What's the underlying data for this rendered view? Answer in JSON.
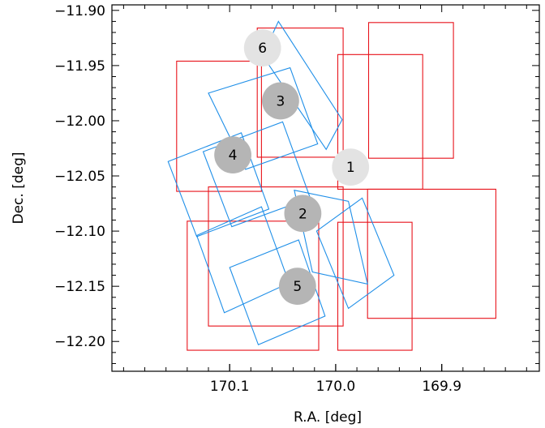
{
  "chart_data": {
    "type": "scatter",
    "xlabel": "R.A. [deg]",
    "ylabel": "Dec. [deg]",
    "xlim": [
      170.211,
      169.808
    ],
    "ylim": [
      -12.227,
      -11.895
    ],
    "x_ticks": [
      {
        "value": 170.1,
        "label": "170.1"
      },
      {
        "value": 170.0,
        "label": "170.0"
      },
      {
        "value": 169.9,
        "label": "169.9"
      }
    ],
    "y_ticks": [
      {
        "value": -11.9,
        "label": "−11.90"
      },
      {
        "value": -11.95,
        "label": "−11.95"
      },
      {
        "value": -12.0,
        "label": "−12.00"
      },
      {
        "value": -12.05,
        "label": "−12.05"
      },
      {
        "value": -12.1,
        "label": "−12.10"
      },
      {
        "value": -12.15,
        "label": "−12.15"
      },
      {
        "value": -12.2,
        "label": "−12.20"
      }
    ],
    "grid": false,
    "colors": {
      "red_fields": "#e8141c",
      "blue_fields": "#1f8fe8",
      "dark_circle": "#b5b5b5",
      "light_circle": "#e3e3e3"
    },
    "circles": [
      {
        "label": "1",
        "ra": 169.986,
        "dec": -12.042,
        "r_deg": 0.0175,
        "shade": "light"
      },
      {
        "label": "2",
        "ra": 170.031,
        "dec": -12.084,
        "r_deg": 0.0175,
        "shade": "dark"
      },
      {
        "label": "3",
        "ra": 170.052,
        "dec": -11.982,
        "r_deg": 0.0175,
        "shade": "dark"
      },
      {
        "label": "4",
        "ra": 170.097,
        "dec": -12.031,
        "r_deg": 0.0175,
        "shade": "dark"
      },
      {
        "label": "5",
        "ra": 170.036,
        "dec": -12.15,
        "r_deg": 0.0175,
        "shade": "dark"
      },
      {
        "label": "6",
        "ra": 170.069,
        "dec": -11.934,
        "r_deg": 0.0175,
        "shade": "light"
      }
    ],
    "red_fields": [
      [
        [
          170.074,
          -11.916
        ],
        [
          169.993,
          -11.916
        ],
        [
          169.993,
          -12.033
        ],
        [
          170.074,
          -12.033
        ]
      ],
      [
        [
          170.15,
          -11.946
        ],
        [
          170.07,
          -11.946
        ],
        [
          170.07,
          -12.064
        ],
        [
          170.15,
          -12.064
        ]
      ],
      [
        [
          169.998,
          -11.94
        ],
        [
          169.918,
          -11.94
        ],
        [
          169.918,
          -12.062
        ],
        [
          169.998,
          -12.062
        ]
      ],
      [
        [
          169.969,
          -11.911
        ],
        [
          169.889,
          -11.911
        ],
        [
          169.889,
          -12.034
        ],
        [
          169.969,
          -12.034
        ]
      ],
      [
        [
          170.12,
          -12.06
        ],
        [
          169.993,
          -12.06
        ],
        [
          169.993,
          -12.186
        ],
        [
          170.12,
          -12.186
        ]
      ],
      [
        [
          170.14,
          -12.091
        ],
        [
          170.016,
          -12.091
        ],
        [
          170.016,
          -12.208
        ],
        [
          170.14,
          -12.208
        ]
      ],
      [
        [
          169.998,
          -12.092
        ],
        [
          169.928,
          -12.092
        ],
        [
          169.928,
          -12.208
        ],
        [
          169.998,
          -12.208
        ]
      ],
      [
        [
          169.97,
          -12.062
        ],
        [
          169.849,
          -12.062
        ],
        [
          169.849,
          -12.179
        ],
        [
          169.97,
          -12.179
        ]
      ]
    ],
    "blue_fields": [
      [
        [
          170.069,
          -11.941
        ],
        [
          170.054,
          -11.91
        ],
        [
          169.994,
          -11.999
        ],
        [
          170.009,
          -12.026
        ]
      ],
      [
        [
          170.12,
          -11.975
        ],
        [
          170.043,
          -11.952
        ],
        [
          170.017,
          -12.021
        ],
        [
          170.085,
          -12.044
        ]
      ],
      [
        [
          170.158,
          -12.037
        ],
        [
          170.089,
          -12.011
        ],
        [
          170.063,
          -12.08
        ],
        [
          170.131,
          -12.105
        ]
      ],
      [
        [
          170.125,
          -12.028
        ],
        [
          170.05,
          -12.001
        ],
        [
          170.024,
          -12.07
        ],
        [
          170.098,
          -12.096
        ]
      ],
      [
        [
          170.131,
          -12.104
        ],
        [
          170.07,
          -12.078
        ],
        [
          170.044,
          -12.147
        ],
        [
          170.105,
          -12.174
        ]
      ],
      [
        [
          170.1,
          -12.133
        ],
        [
          170.035,
          -12.108
        ],
        [
          170.01,
          -12.177
        ],
        [
          170.073,
          -12.203
        ]
      ],
      [
        [
          170.039,
          -12.063
        ],
        [
          169.988,
          -12.073
        ],
        [
          169.97,
          -12.148
        ],
        [
          170.022,
          -12.137
        ]
      ],
      [
        [
          170.018,
          -12.1
        ],
        [
          169.975,
          -12.07
        ],
        [
          169.945,
          -12.14
        ],
        [
          169.988,
          -12.17
        ]
      ]
    ],
    "rectangle_cuts": []
  }
}
